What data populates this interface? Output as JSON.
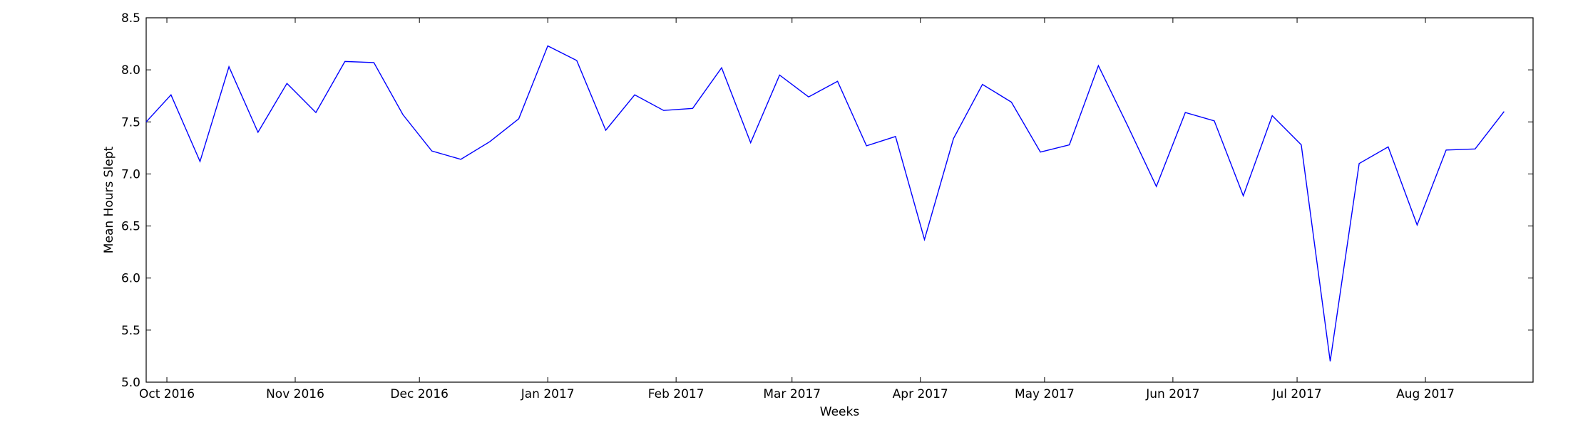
{
  "chart_data": {
    "type": "line",
    "title": "",
    "xlabel": "Weeks",
    "ylabel": "Mean Hours Slept",
    "ylim": [
      5.0,
      8.5
    ],
    "xlim": [
      "2016-09-26",
      "2017-08-27"
    ],
    "grid": false,
    "line_color": "#0000ff",
    "yticks": [
      "5.0",
      "5.5",
      "6.0",
      "6.5",
      "7.0",
      "7.5",
      "8.0",
      "8.5"
    ],
    "xticks": [
      {
        "date": "2016-10-01",
        "label": "Oct 2016"
      },
      {
        "date": "2016-11-01",
        "label": "Nov 2016"
      },
      {
        "date": "2016-12-01",
        "label": "Dec 2016"
      },
      {
        "date": "2017-01-01",
        "label": "Jan 2017"
      },
      {
        "date": "2017-02-01",
        "label": "Feb 2017"
      },
      {
        "date": "2017-03-01",
        "label": "Mar 2017"
      },
      {
        "date": "2017-04-01",
        "label": "Apr 2017"
      },
      {
        "date": "2017-05-01",
        "label": "May 2017"
      },
      {
        "date": "2017-06-01",
        "label": "Jun 2017"
      },
      {
        "date": "2017-07-01",
        "label": "Jul 2017"
      },
      {
        "date": "2017-08-01",
        "label": "Aug 2017"
      }
    ],
    "series": [
      {
        "x": [
          "2016-09-25",
          "2016-10-02",
          "2016-10-09",
          "2016-10-16",
          "2016-10-23",
          "2016-10-30",
          "2016-11-06",
          "2016-11-13",
          "2016-11-20",
          "2016-11-27",
          "2016-12-04",
          "2016-12-11",
          "2016-12-18",
          "2016-12-25",
          "2017-01-01",
          "2017-01-08",
          "2017-01-15",
          "2017-01-22",
          "2017-01-29",
          "2017-02-05",
          "2017-02-12",
          "2017-02-19",
          "2017-02-26",
          "2017-03-05",
          "2017-03-12",
          "2017-03-19",
          "2017-03-26",
          "2017-04-02",
          "2017-04-09",
          "2017-04-16",
          "2017-04-23",
          "2017-04-30",
          "2017-05-07",
          "2017-05-14",
          "2017-05-21",
          "2017-05-28",
          "2017-06-04",
          "2017-06-11",
          "2017-06-18",
          "2017-06-25",
          "2017-07-02",
          "2017-07-09",
          "2017-07-16",
          "2017-07-23",
          "2017-07-30",
          "2017-08-06",
          "2017-08-13",
          "2017-08-20"
        ],
        "values": [
          7.5,
          7.76,
          7.12,
          8.03,
          7.4,
          7.87,
          7.59,
          8.08,
          8.07,
          7.57,
          7.22,
          7.14,
          7.31,
          7.53,
          8.23,
          8.09,
          7.42,
          7.76,
          7.61,
          7.63,
          8.02,
          7.3,
          7.95,
          7.74,
          7.89,
          7.27,
          7.36,
          6.37,
          7.34,
          7.86,
          7.69,
          7.21,
          7.28,
          8.04,
          7.47,
          6.88,
          7.59,
          7.51,
          6.79,
          7.56,
          7.28,
          5.2,
          7.1,
          7.26,
          6.51,
          7.23,
          7.24,
          7.6
        ]
      }
    ]
  }
}
